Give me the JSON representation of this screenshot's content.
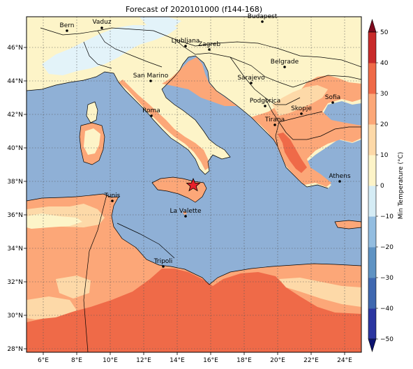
{
  "title": "Forecast of 2020101000 (f144-168)",
  "colors": {
    "sea": "#8fb0d6",
    "warm1": "#fdf4c8",
    "warm2": "#fdd9a8",
    "warm3": "#fca778",
    "warm4": "#ef6a48",
    "cold1": "#e3f3f9",
    "border": "#000000",
    "grid": "#555555",
    "star": "#e8202a"
  },
  "lon_ticks": [
    "6°E",
    "8°E",
    "10°E",
    "12°E",
    "14°E",
    "16°E",
    "18°E",
    "20°E",
    "22°E",
    "24°E"
  ],
  "lat_ticks": [
    "28°N",
    "30°N",
    "32°N",
    "34°N",
    "36°N",
    "38°N",
    "40°N",
    "42°N",
    "44°N",
    "46°N"
  ],
  "cities": [
    {
      "name": "Bern"
    },
    {
      "name": "Vaduz"
    },
    {
      "name": "Budapest"
    },
    {
      "name": "Ljubljana"
    },
    {
      "name": "Zagreb"
    },
    {
      "name": "Belgrade"
    },
    {
      "name": "San Marino"
    },
    {
      "name": "Sarajevo"
    },
    {
      "name": "Sofia"
    },
    {
      "name": "Podgorica"
    },
    {
      "name": "Skopje"
    },
    {
      "name": "Roma"
    },
    {
      "name": "Tirana"
    },
    {
      "name": "Athens"
    },
    {
      "name": "Tunis"
    },
    {
      "name": "La Valette"
    },
    {
      "name": "Tripoli"
    }
  ],
  "colorbar": {
    "label": "Min Temperature (°C)",
    "ticks": [
      "−50",
      "−40",
      "−30",
      "−20",
      "−10",
      "0",
      "10",
      "20",
      "30",
      "40",
      "50"
    ],
    "colors": [
      "#0b1370",
      "#2b35a0",
      "#3f68b0",
      "#5f93c3",
      "#93bde0",
      "#d5ecf5",
      "#fdf4c8",
      "#fdd9a8",
      "#fca778",
      "#ef6a48",
      "#c82b2b",
      "#7e0a1e"
    ]
  },
  "marker": {
    "name": "event-star"
  }
}
